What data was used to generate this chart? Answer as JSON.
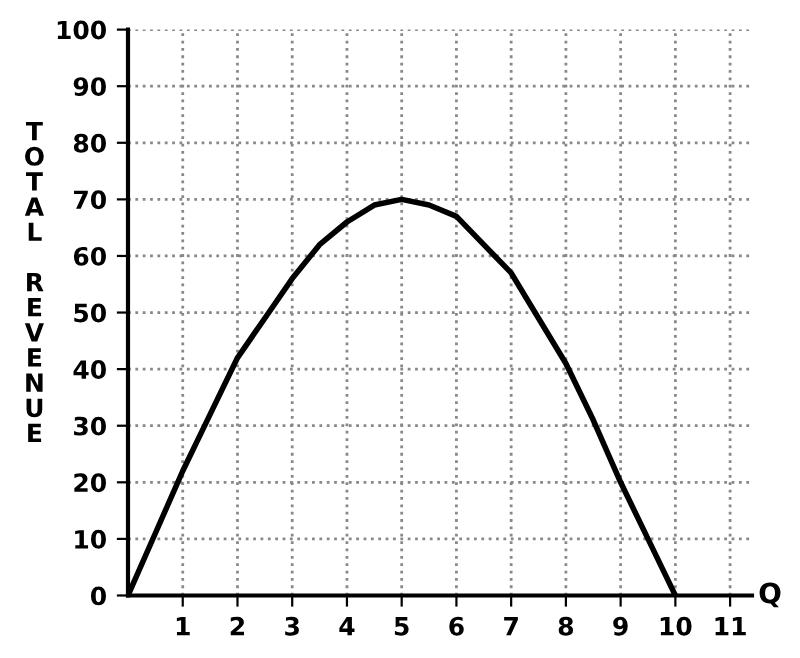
{
  "chart_data": {
    "type": "line",
    "xlabel": "Q",
    "ylabel": "TOTAL REVENUE",
    "x": [
      0,
      0.5,
      1,
      1.5,
      2,
      2.5,
      3,
      3.5,
      4,
      4.5,
      5,
      5.5,
      6,
      6.5,
      7,
      7.5,
      8,
      8.5,
      9,
      9.5,
      10
    ],
    "series": [
      {
        "color": "#000000",
        "values": [
          0,
          11,
          22,
          32,
          42,
          49,
          56,
          62,
          66,
          69,
          70,
          69,
          67,
          62,
          57,
          49,
          41,
          31,
          20,
          10,
          0
        ]
      }
    ],
    "xlim": [
      0,
      11.4
    ],
    "xticks": [
      1,
      2,
      3,
      4,
      5,
      6,
      7,
      8,
      9,
      10,
      11
    ],
    "ylim": [
      0,
      100
    ],
    "yticks": [
      0,
      10,
      20,
      30,
      40,
      50,
      60,
      70,
      80,
      90,
      100
    ],
    "grid": true,
    "line_style": "solid",
    "marker": "none",
    "legend": false
  }
}
